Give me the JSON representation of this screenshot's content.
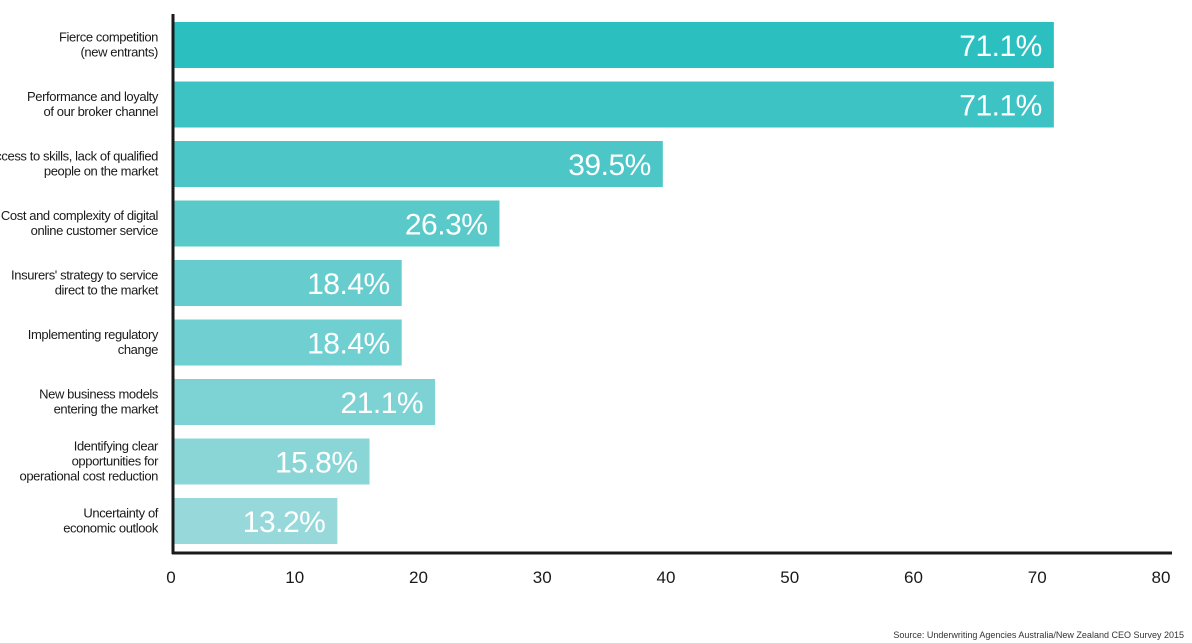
{
  "chart_data": {
    "type": "bar",
    "orientation": "horizontal",
    "categories": [
      [
        "Fierce competition",
        "(new entrants)"
      ],
      [
        "Performance and loyalty",
        "of our broker channel"
      ],
      [
        "Access to skills, lack of qualified",
        "people on the market"
      ],
      [
        "Cost and complexity of digital",
        "online customer service"
      ],
      [
        "Insurers' strategy to service",
        "direct to the market"
      ],
      [
        "Implementing regulatory",
        "change"
      ],
      [
        "New business models",
        "entering the market"
      ],
      [
        "Identifying clear",
        "opportunities for",
        "operational cost reduction"
      ],
      [
        "Uncertainty of",
        "economic outlook"
      ]
    ],
    "values": [
      71.1,
      71.1,
      39.5,
      26.3,
      18.4,
      18.4,
      21.1,
      15.8,
      13.2
    ],
    "value_labels": [
      "71.1%",
      "71.1%",
      "39.5%",
      "26.3%",
      "18.4%",
      "18.4%",
      "21.1%",
      "15.8%",
      "13.2%"
    ],
    "bar_colors": [
      "#2bbfc0",
      "#3ec3c4",
      "#4cc6c7",
      "#59c9ca",
      "#66cccd",
      "#70cfd0",
      "#7dd2d3",
      "#8ad6d7",
      "#97d9da"
    ],
    "xlim": [
      0,
      80
    ],
    "x_ticks": [
      0,
      10,
      20,
      30,
      40,
      50,
      60,
      70,
      80
    ],
    "xlabel": "",
    "ylabel": "",
    "title": "",
    "grid": false,
    "axis_color": "#1a1a1a"
  },
  "source": "Source:  Underwriting Agencies Australia/New Zealand CEO Survey 2015"
}
